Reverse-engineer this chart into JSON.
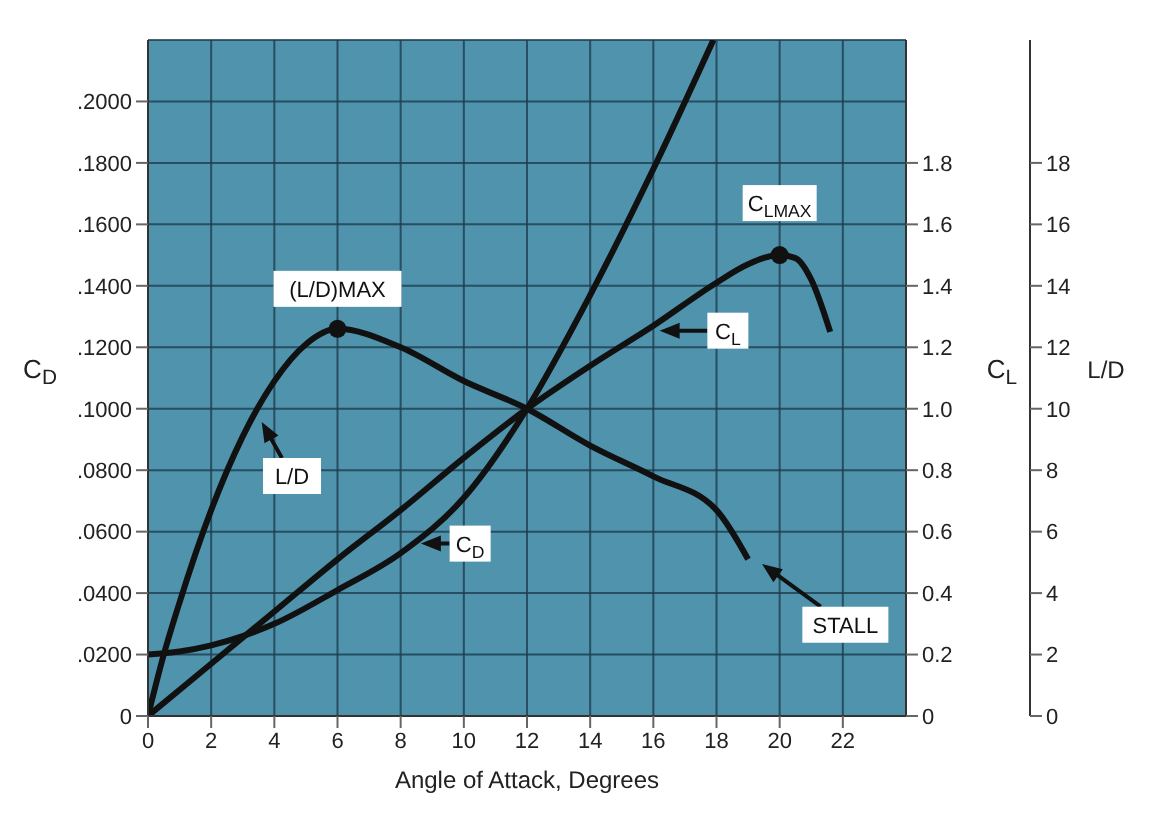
{
  "chart_data": {
    "type": "line",
    "xlabel": "Angle of Attack, Degrees",
    "ylabel": "C$_{D}$",
    "y2label": "C$_{L}$",
    "y3label": "L/D",
    "xlim": [
      0,
      24
    ],
    "xticks": [
      0,
      2,
      4,
      6,
      8,
      10,
      12,
      14,
      16,
      18,
      20,
      22
    ],
    "ylim": [
      0,
      0.22
    ],
    "yticks": [
      {
        "value": 0,
        "label": "0"
      },
      {
        "value": 0.02,
        "label": ".0200"
      },
      {
        "value": 0.04,
        "label": ".0400"
      },
      {
        "value": 0.06,
        "label": ".0600"
      },
      {
        "value": 0.08,
        "label": ".0800"
      },
      {
        "value": 0.1,
        "label": ".1000"
      },
      {
        "value": 0.12,
        "label": ".1200"
      },
      {
        "value": 0.14,
        "label": ".1400"
      },
      {
        "value": 0.16,
        "label": ".1600"
      },
      {
        "value": 0.18,
        "label": ".1800"
      },
      {
        "value": 0.2,
        "label": ".2000"
      }
    ],
    "y2lim": [
      0,
      2.2
    ],
    "y2ticks": [
      {
        "value": 0,
        "label": "0"
      },
      0.2,
      0.4,
      0.6,
      0.8,
      {
        "value": 1,
        "label": "1.0"
      },
      1.2,
      1.4,
      1.6,
      1.8
    ],
    "y3lim": [
      0,
      22
    ],
    "y3ticks": [
      0,
      2,
      4,
      6,
      8,
      10,
      12,
      14,
      16,
      18
    ],
    "grid": true,
    "marker": "none",
    "line_style": "solid",
    "series": [
      {
        "color": "#111111",
        "axis": "y",
        "x": [
          0,
          1,
          2,
          3,
          4,
          6,
          8,
          10,
          12,
          14,
          16,
          17.9
        ],
        "values": [
          0.02,
          0.021,
          0.023,
          0.026,
          0.03,
          0.041,
          0.053,
          0.071,
          0.1,
          0.137,
          0.178,
          0.22
        ]
      },
      {
        "color": "#111111",
        "axis": "y2",
        "x": [
          0,
          2,
          4,
          6,
          8,
          10,
          12,
          14,
          16,
          18,
          19,
          20,
          20.5,
          21,
          21.6
        ],
        "values": [
          0,
          0.17,
          0.34,
          0.51,
          0.67,
          0.84,
          1.0,
          1.14,
          1.27,
          1.41,
          1.47,
          1.5,
          1.49,
          1.42,
          1.25
        ]
      },
      {
        "color": "#111111",
        "axis": "y3",
        "x": [
          0,
          0.5,
          1,
          2,
          3,
          4,
          5,
          6,
          8,
          10,
          12,
          14,
          16,
          18,
          19
        ],
        "values": [
          0,
          2,
          3.7,
          6.7,
          9.1,
          10.9,
          12.1,
          12.6,
          12,
          10.9,
          10,
          8.8,
          7.8,
          6.7,
          5.1
        ]
      }
    ],
    "annotations": [
      {
        "text": "(L/D)MAX",
        "x": 6,
        "y": 0.126
      },
      "L/D",
      "C$_{D}$",
      "C$_{L}$",
      {
        "text": "C$_{LMAX}$",
        "x": 20,
        "y": 0.15
      },
      "STALL"
    ]
  }
}
